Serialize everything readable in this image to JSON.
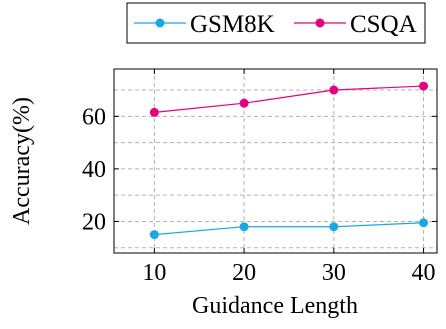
{
  "chart_data": {
    "type": "line",
    "title": "",
    "xlabel": "Guidance Length",
    "ylabel": "Accuracy(%)",
    "x": [
      10,
      20,
      30,
      40
    ],
    "xticks": [
      "10",
      "20",
      "30",
      "40"
    ],
    "yticks": [
      "20",
      "40",
      "60"
    ],
    "xlim": [
      5.5,
      41.5
    ],
    "ylim": [
      8,
      78
    ],
    "grid": true,
    "legend_position": "top-center",
    "series": [
      {
        "name": "GSM8K",
        "color": "#1ba8e0",
        "values": [
          15,
          18,
          18,
          19.5
        ]
      },
      {
        "name": "CSQA",
        "color": "#e4007f",
        "values": [
          61.5,
          65,
          70,
          71.5
        ]
      }
    ]
  }
}
